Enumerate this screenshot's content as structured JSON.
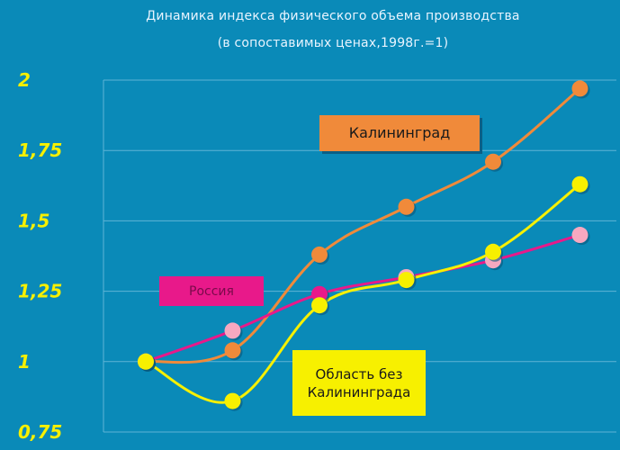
{
  "title": {
    "line1": "Динамика индекса физического объема производства",
    "line2": "(в сопоставимых ценах,1998г.=1)"
  },
  "colors": {
    "background": "#0a8ab8",
    "kaliningrad": "#f08a3a",
    "russia": "#e8198a",
    "russia_marker": "#f7a8c0",
    "oblast": "#f7f000",
    "axis_labels": "#f7f000",
    "grid": "#5fb4d6"
  },
  "legend": {
    "kaliningrad": "Калининград",
    "russia": "Россия",
    "oblast_line1": "Область без",
    "oblast_line2": "Калининграда"
  },
  "chart_data": {
    "type": "line",
    "title": "Динамика индекса физического объема производства (в сопоставимых ценах,1998г.=1)",
    "xlabel": "",
    "ylabel": "",
    "x": [
      1,
      2,
      3,
      4,
      5,
      6,
      7
    ],
    "ylim": [
      0.75,
      2
    ],
    "yticks": [
      "2",
      "1,75",
      "1,5",
      "1,25",
      "1",
      "0,75"
    ],
    "ytick_values": [
      2,
      1.75,
      1.5,
      1.25,
      1,
      0.75
    ],
    "grid": true,
    "series": [
      {
        "name": "Калининград",
        "values": [
          1.0,
          1.04,
          1.38,
          1.55,
          1.71,
          1.97
        ],
        "x": [
          1,
          2,
          3,
          4,
          5,
          6
        ]
      },
      {
        "name": "Россия",
        "values": [
          1.0,
          1.11,
          1.24,
          1.3,
          1.36,
          1.45
        ],
        "x": [
          1,
          2,
          3,
          4,
          5,
          6
        ]
      },
      {
        "name": "Область без Калининграда",
        "values": [
          1.0,
          0.86,
          1.2,
          1.29,
          1.39,
          1.63
        ],
        "x": [
          1,
          2,
          3,
          4,
          5,
          6
        ]
      }
    ]
  }
}
